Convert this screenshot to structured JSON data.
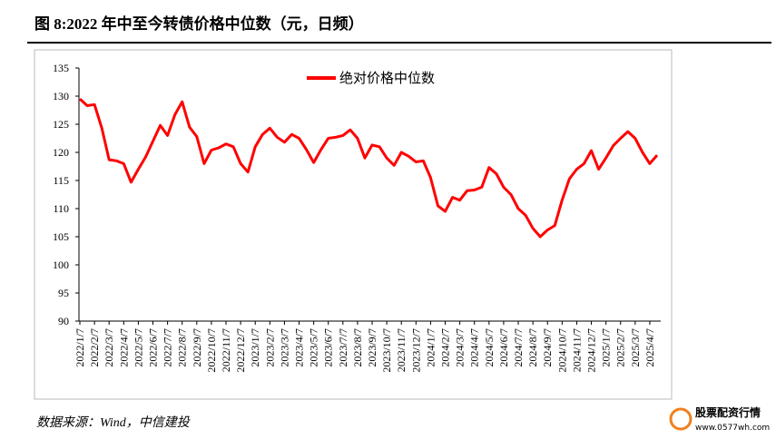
{
  "chart_data": {
    "type": "line",
    "title": "图 8:2022 年中至今转债价格中位数（元，日频）",
    "source": "数据来源：Wind，中信建投",
    "watermark": "股票配资行情",
    "watermark_url": "www.0577wh.com",
    "categories": [
      "2022/1/7",
      null,
      "2022/2/7",
      null,
      "2022/3/7",
      null,
      "2022/4/7",
      null,
      "2022/5/7",
      null,
      "2022/6/7",
      null,
      "2022/7/7",
      null,
      "2022/8/7",
      null,
      "2022/9/7",
      null,
      "2022/10/7",
      null,
      "2022/11/7",
      null,
      "2022/12/7",
      null,
      "2023/1/7",
      null,
      "2023/2/7",
      null,
      "2023/3/7",
      null,
      "2023/4/7",
      null,
      "2023/5/7",
      null,
      "2023/6/7",
      null,
      "2023/7/7",
      null,
      "2023/8/7",
      null,
      "2023/9/7",
      null,
      "2023/10/7",
      null,
      "2023/11/7",
      null,
      "2023/12/7",
      null,
      "2024/1/7",
      null,
      "2024/2/7",
      null,
      "2024/3/7",
      null,
      "2024/4/7",
      null,
      "2024/5/7",
      null,
      "2024/6/7",
      null,
      "2024/7/7",
      null,
      "2024/8/7",
      null,
      "2024/9/7",
      null,
      "2024/10/7",
      null,
      "2024/11/7",
      null,
      "2024/12/7",
      null,
      "2025/1/7",
      null,
      "2025/2/7",
      null,
      "2025/3/7",
      null,
      "2025/4/7",
      null
    ],
    "series": [
      {
        "name": "绝对价格中位数",
        "color": "#ff0000",
        "values": [
          129.5,
          128.3,
          128.5,
          124.3,
          118.7,
          118.5,
          118,
          114.7,
          117,
          119.2,
          122,
          124.8,
          123,
          126.7,
          129,
          124.5,
          122.8,
          118,
          120.4,
          120.8,
          121.5,
          121,
          118,
          116.5,
          121,
          123.2,
          124.3,
          122.7,
          121.8,
          123.2,
          122.5,
          120.5,
          118.2,
          120.5,
          122.5,
          122.7,
          123,
          124,
          122.5,
          119,
          121.3,
          121,
          119,
          117.7,
          120,
          119.3,
          118.3,
          118.5,
          115.5,
          110.5,
          109.5,
          112,
          111.5,
          113.2,
          113.3,
          113.8,
          117.3,
          116.2,
          113.8,
          112.5,
          110,
          108.8,
          106.5,
          105,
          106.2,
          107,
          111.5,
          115.3,
          117,
          118,
          120.3,
          117,
          119,
          121.2,
          122.5,
          123.7,
          122.5,
          120,
          118,
          119.5
        ]
      }
    ],
    "ylim": [
      90,
      135
    ],
    "yticks": [
      90,
      95,
      100,
      105,
      110,
      115,
      120,
      125,
      130,
      135
    ],
    "legend": "top"
  }
}
